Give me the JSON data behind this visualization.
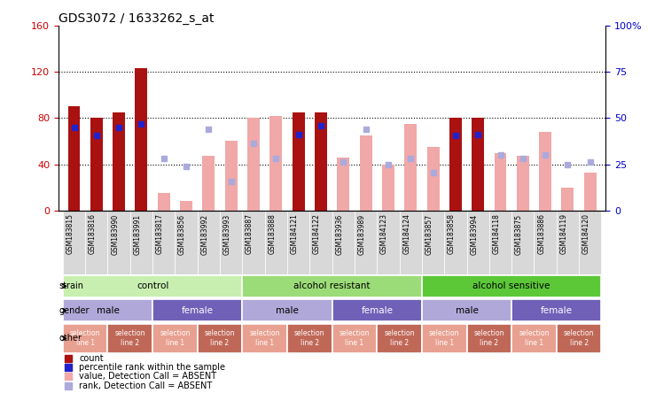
{
  "title": "GDS3072 / 1633262_s_at",
  "samples": [
    "GSM183815",
    "GSM183816",
    "GSM183990",
    "GSM183991",
    "GSM183817",
    "GSM183856",
    "GSM183992",
    "GSM183993",
    "GSM183887",
    "GSM183888",
    "GSM184121",
    "GSM184122",
    "GSM183936",
    "GSM183989",
    "GSM184123",
    "GSM184124",
    "GSM183857",
    "GSM183858",
    "GSM183994",
    "GSM184118",
    "GSM183875",
    "GSM183886",
    "GSM184119",
    "GSM184120"
  ],
  "count_present": [
    90,
    80,
    85,
    123,
    0,
    0,
    0,
    0,
    0,
    0,
    85,
    85,
    0,
    0,
    0,
    0,
    0,
    80,
    80,
    0,
    0,
    0,
    0,
    0
  ],
  "count_absent": [
    0,
    0,
    0,
    0,
    15,
    8,
    47,
    60,
    80,
    82,
    0,
    0,
    46,
    65,
    40,
    75,
    55,
    0,
    0,
    50,
    47,
    68,
    20,
    33
  ],
  "rank_present": [
    72,
    65,
    72,
    75,
    0,
    0,
    0,
    0,
    0,
    0,
    66,
    73,
    0,
    0,
    0,
    0,
    0,
    65,
    66,
    0,
    0,
    0,
    0,
    0
  ],
  "rank_absent": [
    0,
    0,
    0,
    0,
    45,
    38,
    70,
    25,
    58,
    45,
    0,
    0,
    42,
    70,
    40,
    45,
    33,
    0,
    0,
    48,
    45,
    48,
    40,
    42
  ],
  "ylim_left": [
    0,
    160
  ],
  "ylim_right": [
    0,
    100
  ],
  "yticks_left": [
    0,
    40,
    80,
    120,
    160
  ],
  "yticks_right": [
    0,
    25,
    50,
    75,
    100
  ],
  "strain_groups": [
    {
      "label": "control",
      "start": 0,
      "end": 7,
      "color": "#c8efb0"
    },
    {
      "label": "alcohol resistant",
      "start": 8,
      "end": 15,
      "color": "#9cdc78"
    },
    {
      "label": "alcohol sensitive",
      "start": 16,
      "end": 23,
      "color": "#5cc838"
    }
  ],
  "gender_groups": [
    {
      "label": "male",
      "start": 0,
      "end": 3,
      "color": "#b0a8d8"
    },
    {
      "label": "female",
      "start": 4,
      "end": 7,
      "color": "#7060b8"
    },
    {
      "label": "male",
      "start": 8,
      "end": 11,
      "color": "#b0a8d8"
    },
    {
      "label": "female",
      "start": 12,
      "end": 15,
      "color": "#7060b8"
    },
    {
      "label": "male",
      "start": 16,
      "end": 19,
      "color": "#b0a8d8"
    },
    {
      "label": "female",
      "start": 20,
      "end": 23,
      "color": "#7060b8"
    }
  ],
  "other_groups": [
    {
      "label": "selection\nline 1",
      "start": 0,
      "end": 1,
      "color": "#e8a090"
    },
    {
      "label": "selection\nline 2",
      "start": 2,
      "end": 3,
      "color": "#c06858"
    },
    {
      "label": "selection\nline 1",
      "start": 4,
      "end": 5,
      "color": "#e8a090"
    },
    {
      "label": "selection\nline 2",
      "start": 6,
      "end": 7,
      "color": "#c06858"
    },
    {
      "label": "selection\nline 1",
      "start": 8,
      "end": 9,
      "color": "#e8a090"
    },
    {
      "label": "selection\nline 2",
      "start": 10,
      "end": 11,
      "color": "#c06858"
    },
    {
      "label": "selection\nline 1",
      "start": 12,
      "end": 13,
      "color": "#e8a090"
    },
    {
      "label": "selection\nline 2",
      "start": 14,
      "end": 15,
      "color": "#c06858"
    },
    {
      "label": "selection\nline 1",
      "start": 16,
      "end": 17,
      "color": "#e8a090"
    },
    {
      "label": "selection\nline 2",
      "start": 18,
      "end": 19,
      "color": "#c06858"
    },
    {
      "label": "selection\nline 1",
      "start": 20,
      "end": 21,
      "color": "#e8a090"
    },
    {
      "label": "selection\nline 2",
      "start": 22,
      "end": 23,
      "color": "#c06858"
    }
  ],
  "bar_width": 0.55,
  "color_count_present": "#aa1111",
  "color_count_absent": "#f0a8a8",
  "color_rank_present": "#2222cc",
  "color_rank_absent": "#aaaadd",
  "label_color_left": "#cc0000",
  "label_color_right": "#0000cc",
  "tick_bg_color": "#d8d8d8"
}
